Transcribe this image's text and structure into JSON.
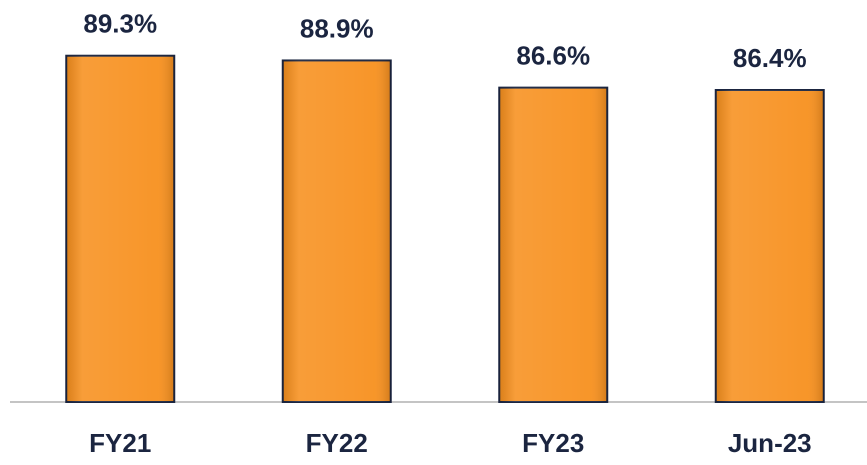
{
  "chart_data": {
    "type": "bar",
    "categories": [
      "FY21",
      "FY22",
      "FY23",
      "Jun-23"
    ],
    "values": [
      89.3,
      88.9,
      86.6,
      86.4
    ],
    "value_labels": [
      "89.3%",
      "88.9%",
      "86.6%",
      "86.4%"
    ],
    "color": "#f7901e",
    "ylim": [
      60,
      93
    ]
  }
}
